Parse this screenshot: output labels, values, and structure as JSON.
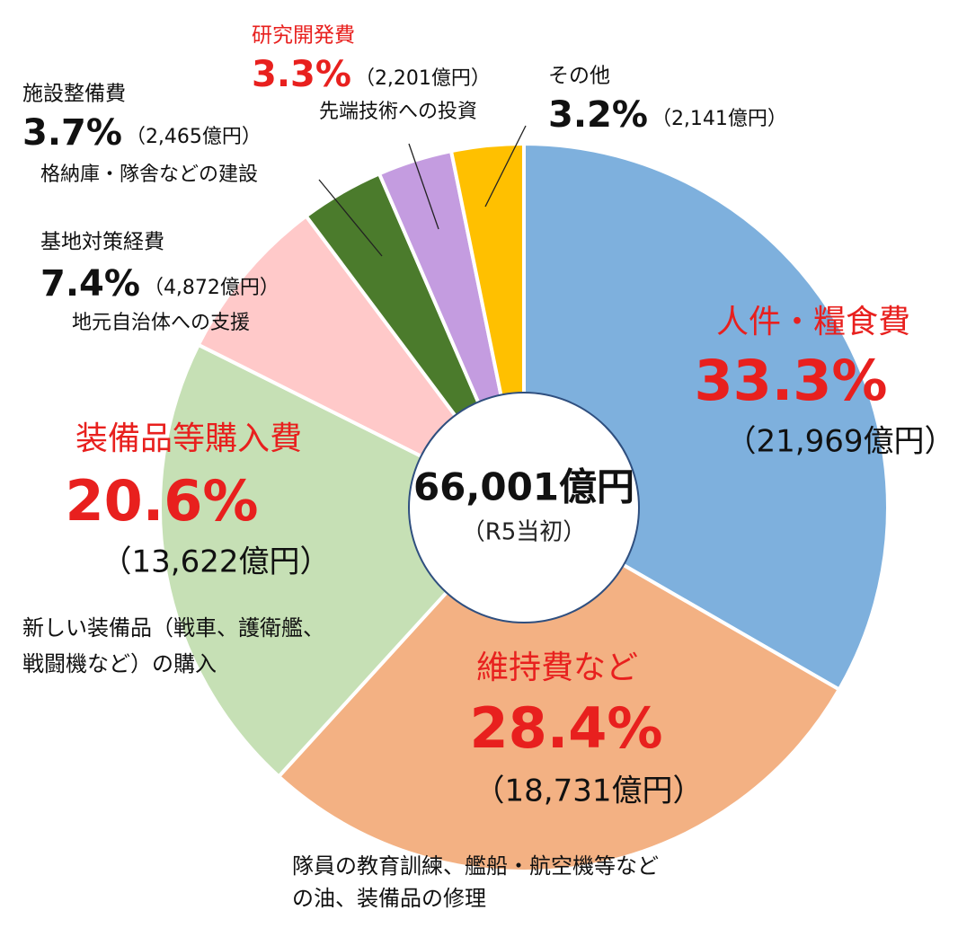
{
  "chart_data": {
    "type": "donut",
    "center_title": "66,001億円",
    "center_subtitle": "（R5当初）",
    "categories": [
      "人件・糧食費",
      "維持費など",
      "装備品等購入費",
      "基地対策経費",
      "施設整備費",
      "研究開発費",
      "その他"
    ],
    "values": [
      33.3,
      28.4,
      20.6,
      7.4,
      3.7,
      3.3,
      3.2
    ],
    "value_labels": [
      "33.3%",
      "28.4%",
      "20.6%",
      "7.4%",
      "3.7%",
      "3.3%",
      "3.2%"
    ],
    "amounts": [
      "（21,969億円）",
      "（18,731億円）",
      "（13,622億円）",
      "（4,872億円）",
      "（2,465億円）",
      "（2,201億円）",
      "（2,141億円）"
    ],
    "descriptions": [
      null,
      [
        "隊員の教育訓練、艦船・航空機等など",
        "の油、装備品の修理"
      ],
      [
        "新しい装備品（戦車、護衛艦、",
        "戦闘機など）の購入"
      ],
      [
        "地元自治体への支援"
      ],
      [
        "格納庫・隊舎などの建設"
      ],
      [
        "先端技術への投資"
      ],
      null
    ],
    "colors": [
      "#7eb0dd",
      "#f3b183",
      "#c6e0b5",
      "#ffc9c9",
      "#4b7b2c",
      "#c49ce0",
      "#ffc000"
    ],
    "label_colors": [
      "#e8201e",
      "#e8201e",
      "#e8201e",
      "#111111",
      "#111111",
      "#e8201e",
      "#111111"
    ]
  }
}
